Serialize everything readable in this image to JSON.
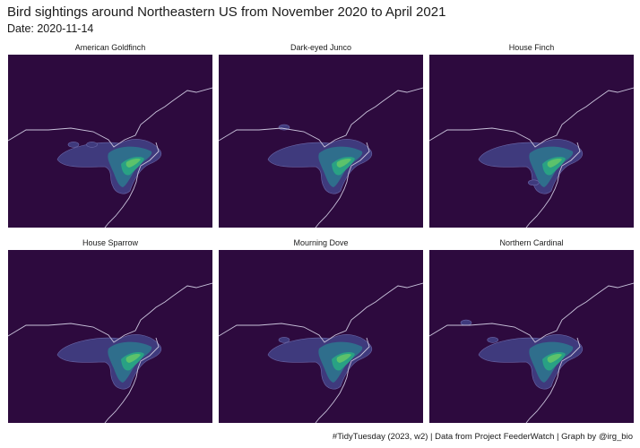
{
  "title": "Bird sightings around Northeastern US from November 2020 to April 2021",
  "subtitle": "Date: 2020-11-14",
  "caption": "#TidyTuesday (2023, w2) | Data from Project FeederWatch | Graph by @irg_bio",
  "colors": {
    "background": "#2d0a3e",
    "low_density": "#3f3a7d",
    "mid_density": "#2f6e8c",
    "high_density": "#29a184",
    "peak_density": "#5cc26b",
    "coastline": "#c9c3db"
  },
  "panels": [
    {
      "species": "American Goldfinch",
      "extras": [
        [
          0.32,
          0.52
        ],
        [
          0.41,
          0.52
        ]
      ]
    },
    {
      "species": "Dark-eyed Junco",
      "extras": [
        [
          0.32,
          0.42
        ]
      ]
    },
    {
      "species": "House Finch",
      "extras": [
        [
          0.51,
          0.74
        ]
      ]
    },
    {
      "species": "House Sparrow",
      "extras": []
    },
    {
      "species": "Mourning Dove",
      "extras": [
        [
          0.32,
          0.52
        ]
      ]
    },
    {
      "species": "Northern Cardinal",
      "extras": [
        [
          0.18,
          0.42
        ],
        [
          0.31,
          0.52
        ]
      ]
    }
  ]
}
